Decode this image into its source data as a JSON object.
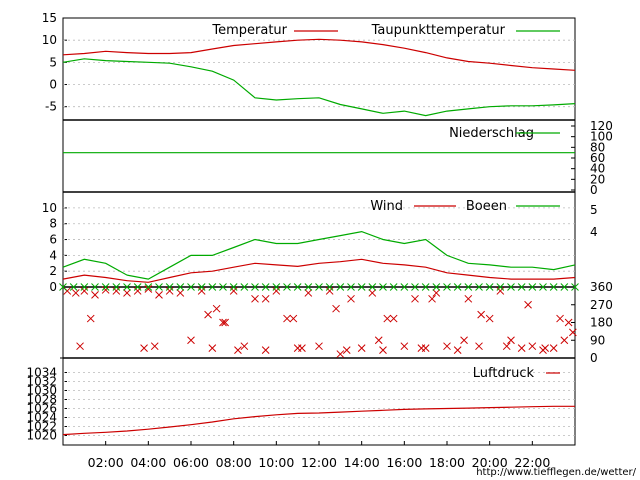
{
  "credit": "http://www.tiefflegen.de/wetter/",
  "colors": {
    "red": "#cc0000",
    "green": "#00aa00",
    "frame": "#000000",
    "grid": "#bbbbbb"
  },
  "x_axis": {
    "range": [
      0,
      24
    ],
    "ticks": [
      {
        "v": 2,
        "label": "02:00"
      },
      {
        "v": 4,
        "label": "04:00"
      },
      {
        "v": 6,
        "label": "06:00"
      },
      {
        "v": 8,
        "label": "08:00"
      },
      {
        "v": 10,
        "label": "10:00"
      },
      {
        "v": 12,
        "label": "12:00"
      },
      {
        "v": 14,
        "label": "14:00"
      },
      {
        "v": 16,
        "label": "16:00"
      },
      {
        "v": 18,
        "label": "18:00"
      },
      {
        "v": 20,
        "label": "20:00"
      },
      {
        "v": 22,
        "label": "22:00"
      }
    ]
  },
  "chart_data": [
    {
      "type": "line",
      "ylim": [
        -8,
        15
      ],
      "y_ticks": [
        15,
        10,
        5,
        0,
        -5
      ],
      "y_tick_labels": [
        "15",
        "10",
        "5",
        "0",
        "-5"
      ],
      "grid": true,
      "series": [
        {
          "name": "Temperatur",
          "color": "#cc0000",
          "x": [
            0,
            1,
            2,
            3,
            4,
            5,
            6,
            7,
            8,
            9,
            10,
            11,
            12,
            13,
            14,
            15,
            16,
            17,
            18,
            19,
            20,
            21,
            22,
            23,
            24
          ],
          "y": [
            6.7,
            7.0,
            7.5,
            7.2,
            7.0,
            7.0,
            7.2,
            8.0,
            8.8,
            9.2,
            9.6,
            10.0,
            10.2,
            10.0,
            9.6,
            9.0,
            8.2,
            7.2,
            6.0,
            5.2,
            4.8,
            4.3,
            3.8,
            3.5,
            3.2
          ]
        },
        {
          "name": "Taupunkttemperatur",
          "color": "#00aa00",
          "x": [
            0,
            1,
            2,
            3,
            4,
            5,
            6,
            7,
            8,
            9,
            10,
            11,
            12,
            13,
            14,
            15,
            16,
            17,
            18,
            19,
            20,
            21,
            22,
            23,
            24
          ],
          "y": [
            5.0,
            5.8,
            5.4,
            5.2,
            5.0,
            4.8,
            4.0,
            3.0,
            1.0,
            -3.0,
            -3.5,
            -3.2,
            -3.0,
            -4.5,
            -5.5,
            -6.5,
            -6.0,
            -7.0,
            -6.0,
            -5.5,
            -5.0,
            -4.8,
            -4.8,
            -4.6,
            -4.3
          ]
        }
      ]
    },
    {
      "type": "line",
      "ylim": [
        0,
        120
      ],
      "y_ticks": [
        120,
        100,
        80,
        60,
        40,
        20,
        0
      ],
      "y_tick_labels": [
        "120",
        "100",
        "80",
        "60",
        "40",
        "20",
        "0"
      ],
      "series": [
        {
          "name": "Niederschlag",
          "color": "#00aa00",
          "x": [
            0,
            24
          ],
          "y": [
            70,
            70
          ]
        }
      ]
    },
    {
      "type": "line",
      "ylim": [
        0,
        11
      ],
      "y_ticks": [
        10,
        8,
        6,
        4,
        2,
        0
      ],
      "y_tick_labels": [
        "10",
        "8",
        "6",
        "4",
        "2",
        "0"
      ],
      "y2_tick_labels": [
        "5",
        "4"
      ],
      "grid": true,
      "series": [
        {
          "name": "Wind",
          "color": "#cc0000",
          "x": [
            0,
            1,
            2,
            3,
            4,
            5,
            6,
            7,
            8,
            9,
            10,
            11,
            12,
            13,
            14,
            15,
            16,
            17,
            18,
            19,
            20,
            21,
            22,
            23,
            24
          ],
          "y": [
            1.0,
            1.5,
            1.2,
            0.8,
            0.6,
            1.2,
            1.8,
            2.0,
            2.5,
            3.0,
            2.8,
            2.6,
            3.0,
            3.2,
            3.5,
            3.0,
            2.8,
            2.5,
            1.8,
            1.5,
            1.2,
            1.0,
            1.0,
            1.0,
            1.2
          ]
        },
        {
          "name": "Boeen",
          "color": "#00aa00",
          "x": [
            0,
            1,
            2,
            3,
            4,
            5,
            6,
            7,
            8,
            9,
            10,
            11,
            12,
            13,
            14,
            15,
            16,
            17,
            18,
            19,
            20,
            21,
            22,
            23,
            24
          ],
          "y": [
            2.5,
            3.5,
            3.0,
            1.5,
            1.0,
            2.5,
            4.0,
            4.0,
            5.0,
            6.0,
            5.5,
            5.5,
            6.0,
            6.5,
            7.0,
            6.0,
            5.5,
            6.0,
            4.0,
            3.0,
            2.8,
            2.5,
            2.5,
            2.2,
            2.8
          ]
        }
      ]
    },
    {
      "type": "scatter",
      "ylim": [
        0,
        360
      ],
      "y_ticks": [
        360,
        270,
        180,
        90,
        0
      ],
      "y_tick_labels": [
        "360",
        "270",
        "180",
        "90",
        "0"
      ],
      "series": [
        {
          "name": "",
          "color": "#cc0000",
          "x": [
            0.2,
            0.6,
            1.0,
            1.5,
            2.0,
            2.5,
            3.0,
            3.5,
            4.0,
            4.5,
            5.0,
            5.5,
            6.0,
            6.5,
            7.0,
            7.5,
            8.0,
            8.5,
            9.0,
            9.5,
            10.0,
            10.5,
            11.0,
            11.5,
            12.0,
            12.5,
            13.0,
            13.5,
            14.0,
            14.5,
            15.0,
            15.5,
            16.0,
            16.5,
            17.0,
            17.5,
            18.0,
            18.5,
            19.0,
            19.5,
            20.0,
            20.5,
            21.0,
            21.5,
            22.0,
            22.5,
            23.0,
            23.5,
            0.8,
            1.3,
            3.8,
            4.3,
            6.8,
            7.2,
            7.6,
            8.2,
            9.5,
            10.8,
            11.2,
            12.8,
            13.3,
            14.8,
            15.2,
            16.8,
            17.3,
            18.8,
            19.6,
            20.8,
            21.8,
            22.6,
            23.3,
            23.7,
            23.9
          ],
          "y": [
            340,
            330,
            340,
            320,
            345,
            340,
            330,
            340,
            350,
            320,
            340,
            330,
            90,
            340,
            50,
            180,
            340,
            60,
            300,
            40,
            340,
            200,
            50,
            330,
            60,
            340,
            20,
            300,
            50,
            330,
            40,
            200,
            60,
            300,
            50,
            330,
            60,
            40,
            300,
            60,
            200,
            340,
            90,
            50,
            60,
            40,
            50,
            90,
            60,
            200,
            50,
            60,
            220,
            250,
            180,
            40,
            300,
            200,
            50,
            250,
            40,
            90,
            200,
            50,
            300,
            90,
            220,
            60,
            270,
            50,
            200,
            180,
            130
          ]
        },
        {
          "name": "",
          "color": "#00aa00",
          "x": [
            0.0,
            0.5,
            1.0,
            1.5,
            2.0,
            2.5,
            3.0,
            3.5,
            4.0,
            4.5,
            5.0,
            5.5,
            6.0,
            6.5,
            7.0,
            7.5,
            8.0,
            8.5,
            9.0,
            9.5,
            10.0,
            10.5,
            11.0,
            11.5,
            12.0,
            12.5,
            13.0,
            13.5,
            14.0,
            14.5,
            15.0,
            15.5,
            16.0,
            16.5,
            17.0,
            17.5,
            18.0,
            18.5,
            19.0,
            19.5,
            20.0,
            20.5,
            21.0,
            21.5,
            22.0,
            22.5,
            23.0,
            23.5,
            24.0
          ],
          "y": [
            360,
            360,
            360,
            360,
            360,
            360,
            360,
            360,
            360,
            360,
            360,
            360,
            360,
            360,
            360,
            360,
            360,
            360,
            360,
            360,
            360,
            360,
            360,
            360,
            360,
            360,
            360,
            360,
            360,
            360,
            360,
            360,
            360,
            360,
            360,
            360,
            360,
            360,
            360,
            360,
            360,
            360,
            360,
            360,
            360,
            360,
            360,
            360,
            360
          ]
        },
        {
          "name": "",
          "color": "#000000",
          "x": [
            0,
            2,
            4,
            6,
            8,
            10,
            12,
            14,
            16,
            18,
            20,
            22
          ],
          "y": [
            0,
            0,
            0,
            0,
            0,
            0,
            0,
            0,
            0,
            0,
            0,
            0
          ]
        }
      ]
    },
    {
      "type": "line",
      "ylim": [
        1019,
        1035
      ],
      "y_ticks": [
        1034,
        1032,
        1030,
        1028,
        1026,
        1024,
        1022,
        1020
      ],
      "y_tick_labels": [
        "1034",
        "1032",
        "1030",
        "1028",
        "1026",
        "1024",
        "1022",
        "1020"
      ],
      "grid": true,
      "series": [
        {
          "name": "Luftdruck",
          "color": "#cc0000",
          "x": [
            0,
            1,
            2,
            3,
            4,
            5,
            6,
            7,
            8,
            9,
            10,
            11,
            12,
            13,
            14,
            15,
            16,
            17,
            18,
            19,
            20,
            21,
            22,
            23,
            24
          ],
          "y": [
            1020.2,
            1020.5,
            1020.7,
            1021.0,
            1021.4,
            1021.9,
            1022.4,
            1023.0,
            1023.7,
            1024.2,
            1024.6,
            1024.9,
            1025.0,
            1025.2,
            1025.4,
            1025.6,
            1025.8,
            1025.9,
            1026.0,
            1026.1,
            1026.2,
            1026.3,
            1026.4,
            1026.5,
            1026.5
          ]
        }
      ]
    }
  ]
}
